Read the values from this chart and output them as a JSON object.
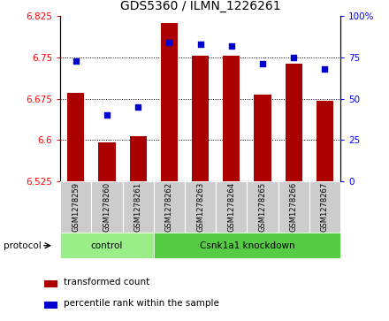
{
  "title": "GDS5360 / ILMN_1226261",
  "samples": [
    "GSM1278259",
    "GSM1278260",
    "GSM1278261",
    "GSM1278262",
    "GSM1278263",
    "GSM1278264",
    "GSM1278265",
    "GSM1278266",
    "GSM1278267"
  ],
  "bar_values": [
    6.685,
    6.595,
    6.607,
    6.812,
    6.753,
    6.753,
    6.683,
    6.738,
    6.671
  ],
  "percentile_values": [
    73,
    40,
    45,
    84,
    83,
    82,
    71,
    75,
    68
  ],
  "bar_color": "#aa0000",
  "dot_color": "#0000cc",
  "ylim_left": [
    6.525,
    6.825
  ],
  "ylim_right": [
    0,
    100
  ],
  "yticks_left": [
    6.525,
    6.6,
    6.675,
    6.75,
    6.825
  ],
  "yticks_right": [
    0,
    25,
    50,
    75,
    100
  ],
  "hlines": [
    6.6,
    6.675,
    6.75
  ],
  "control_label": "control",
  "knockdown_label": "Csnk1a1 knockdown",
  "protocol_label": "protocol",
  "legend_bar_label": "transformed count",
  "legend_dot_label": "percentile rank within the sample",
  "group_box_color": "#cccccc",
  "control_fill": "#99ee88",
  "knockdown_fill": "#55cc44",
  "bar_bottom": 6.525,
  "title_fontsize": 10,
  "tick_fontsize": 7.5,
  "sample_fontsize": 6,
  "legend_fontsize": 7.5,
  "protocol_fontsize": 7.5,
  "group_fontsize": 7.5
}
